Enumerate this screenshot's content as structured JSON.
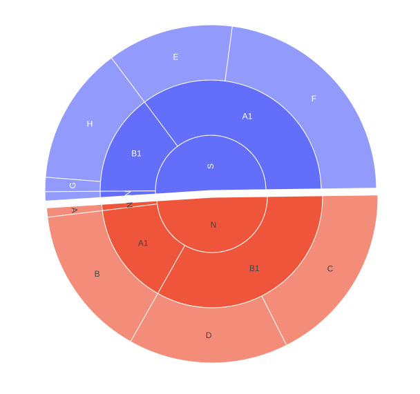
{
  "chart_data": {
    "type": "sunburst",
    "colors": {
      "S": [
        "#636efa",
        "#636efa",
        "#929afb"
      ],
      "N": [
        "#ef553b",
        "#ef553b",
        "#f38c79"
      ]
    },
    "label_colors": {
      "S": [
        "#ffffff",
        "#ffffff",
        "#ffffff"
      ],
      "N": [
        "#444444",
        "#444444",
        "#444444"
      ]
    },
    "nodes": [
      {
        "label": "S",
        "group": "S",
        "value": 50.8,
        "children": [
          {
            "label": "A1",
            "value": 35.0,
            "children": [
              {
                "label": "F",
                "value": 22.7
              },
              {
                "label": "E",
                "value": 12.3
              }
            ]
          },
          {
            "label": "B1",
            "value": 14.9,
            "children": [
              {
                "label": "H",
                "value": 13.5
              },
              {
                "label": "G",
                "value": 1.4
              }
            ]
          },
          {
            "label": "N",
            "value": 0.9,
            "children": [
              {
                "label": "",
                "value": 0.9
              }
            ]
          }
        ]
      },
      {
        "label": "N",
        "group": "N",
        "value": 49.2,
        "children": [
          {
            "label": "N",
            "value": 0.9,
            "children": [
              {
                "label": "A",
                "value": 0.9
              }
            ]
          },
          {
            "label": "A1",
            "value": 14.9,
            "children": [
              {
                "label": "B",
                "value": 14.9
              }
            ]
          },
          {
            "label": "B1",
            "value": 33.4,
            "children": [
              {
                "label": "D",
                "value": 15.6
              },
              {
                "label": "C",
                "value": 17.8
              }
            ]
          }
        ]
      }
    ]
  }
}
